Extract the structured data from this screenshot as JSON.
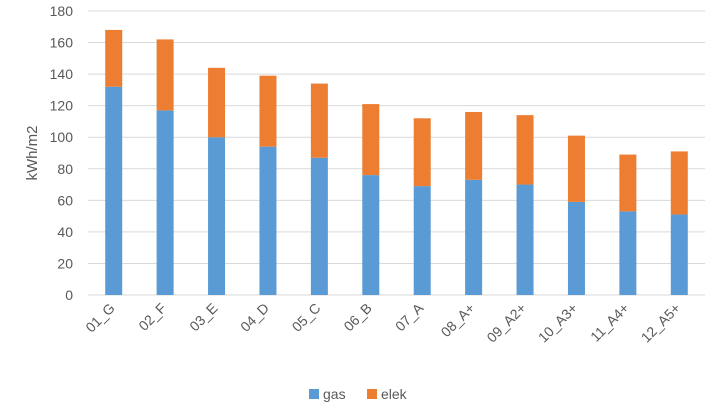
{
  "chart_data": {
    "type": "bar",
    "stacked": true,
    "categories": [
      "01_G",
      "02_F",
      "03_E",
      "04_D",
      "05_C",
      "06_B",
      "07_A",
      "08_A+",
      "09_A2+",
      "10_A3+",
      "11_A4+",
      "12_A5+"
    ],
    "series": [
      {
        "name": "gas",
        "color": "#5b9bd5",
        "values": [
          132,
          117,
          100,
          94,
          87,
          76,
          69,
          73,
          70,
          59,
          53,
          51
        ]
      },
      {
        "name": "elek",
        "color": "#ed7d31",
        "values": [
          36,
          45,
          44,
          45,
          47,
          45,
          43,
          43,
          44,
          42,
          36,
          40
        ]
      }
    ],
    "ylabel": "kWh/m2",
    "ylim": [
      0,
      180
    ],
    "ytick_step": 20,
    "grid": true,
    "gridline_color": "#d9d9d9",
    "legend_position": "bottom"
  }
}
